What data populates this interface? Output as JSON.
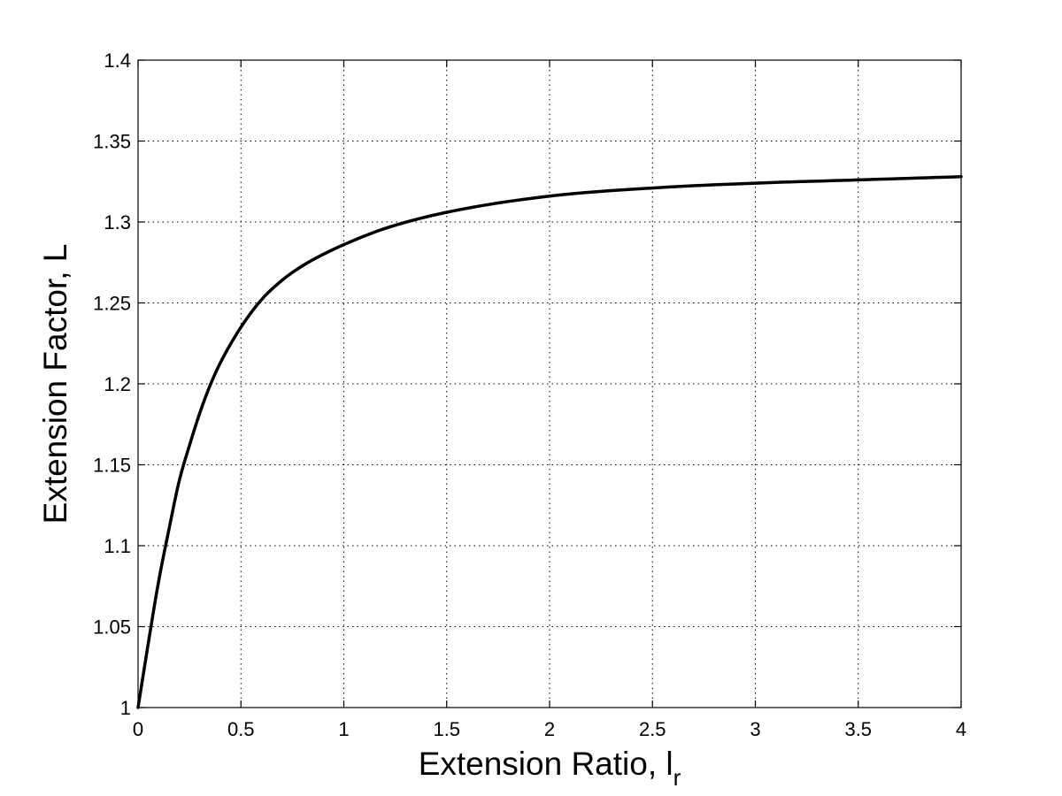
{
  "chart_data": {
    "type": "line",
    "title": "",
    "xlabel": "Extension Ratio, l",
    "xlabel_subscript": "r",
    "ylabel": "Extension Factor, L",
    "xlim": [
      0,
      4
    ],
    "ylim": [
      1,
      1.4
    ],
    "xticks": [
      "0",
      "0.5",
      "1",
      "1.5",
      "2",
      "2.5",
      "3",
      "3.5",
      "4"
    ],
    "yticks": [
      "1",
      "1.05",
      "1.1",
      "1.15",
      "1.2",
      "1.25",
      "1.3",
      "1.35",
      "1.4"
    ],
    "grid": true,
    "colors": {
      "line": "#000000",
      "background": "#ffffff"
    },
    "series": [
      {
        "x": [
          0,
          0.05,
          0.1,
          0.15,
          0.2,
          0.25,
          0.3,
          0.35,
          0.4,
          0.5,
          0.6,
          0.7,
          0.8,
          0.9,
          1.0,
          1.2,
          1.5,
          2.0,
          2.5,
          3.0,
          3.5,
          4.0
        ],
        "y": [
          1.0,
          1.04,
          1.078,
          1.11,
          1.14,
          1.162,
          1.182,
          1.199,
          1.213,
          1.235,
          1.252,
          1.264,
          1.273,
          1.28,
          1.286,
          1.296,
          1.306,
          1.316,
          1.321,
          1.324,
          1.326,
          1.328
        ]
      }
    ]
  }
}
